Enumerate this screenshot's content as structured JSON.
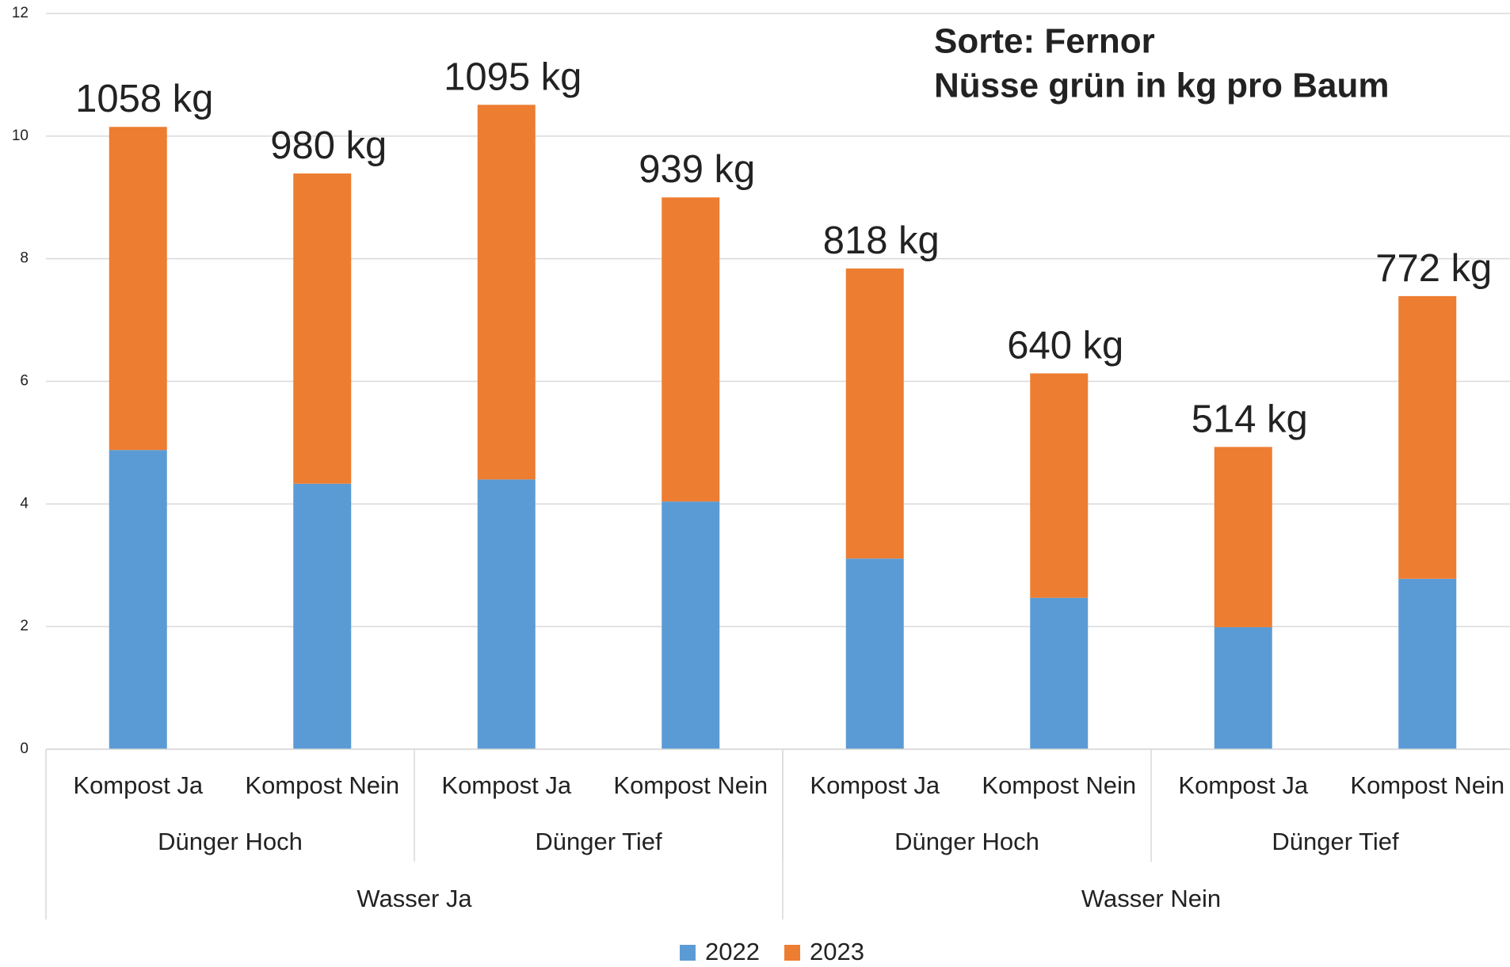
{
  "chart_data": {
    "type": "bar",
    "stacked": true,
    "title": "Sorte: Fernor",
    "subtitle": "Nüsse grün in kg pro Baum",
    "categories": [
      "Kompost Ja",
      "Kompost Nein",
      "Kompost Ja",
      "Kompost Nein",
      "Kompost Ja",
      "Kompost Nein",
      "Kompost Ja",
      "Kompost Nein"
    ],
    "categories2": [
      "Dünger Hoch",
      "Dünger Tief",
      "Dünger Hoch",
      "Dünger Tief"
    ],
    "categories3": [
      "Wasser Ja",
      "Wasser Nein"
    ],
    "series": [
      {
        "name": "2022",
        "color": "#5b9bd5",
        "values": [
          4.88,
          4.33,
          4.4,
          4.04,
          3.11,
          2.47,
          1.99,
          2.78
        ]
      },
      {
        "name": "2023",
        "color": "#ed7d31",
        "values": [
          5.27,
          5.06,
          6.11,
          4.96,
          4.73,
          3.66,
          2.94,
          4.61
        ]
      }
    ],
    "annotations": [
      "1058 kg",
      "980 kg",
      "1095 kg",
      "939 kg",
      "818 kg",
      "640 kg",
      "514 kg",
      "772 kg"
    ],
    "ylim": [
      0,
      12
    ],
    "yticks": [
      0,
      2,
      4,
      6,
      8,
      10,
      12
    ],
    "grid": true,
    "legend": "bottom"
  }
}
